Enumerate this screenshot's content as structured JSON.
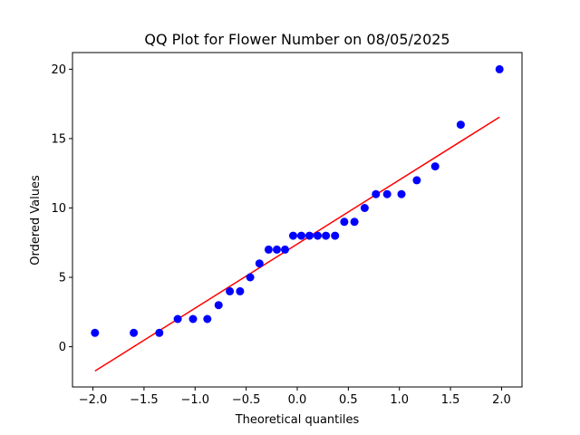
{
  "chart_data": {
    "type": "scatter",
    "title": "QQ Plot for Flower Number on 08/05/2025",
    "xlabel": "Theoretical quantiles",
    "ylabel": "Ordered Values",
    "xlim": [
      -2.2,
      2.2
    ],
    "ylim": [
      -2.9,
      21.2
    ],
    "xticks": [
      -2.0,
      -1.5,
      -1.0,
      -0.5,
      0.0,
      0.5,
      1.0,
      1.5,
      2.0
    ],
    "xtick_labels": [
      "−2.0",
      "−1.5",
      "−1.0",
      "−0.5",
      "0.0",
      "0.5",
      "1.0",
      "1.5",
      "2.0"
    ],
    "yticks": [
      0,
      5,
      10,
      15,
      20
    ],
    "ytick_labels": [
      "0",
      "5",
      "10",
      "15",
      "20"
    ],
    "grid": false,
    "series": [
      {
        "kind": "points",
        "color": "#0000ff",
        "x": [
          -1.98,
          -1.6,
          -1.35,
          -1.17,
          -1.02,
          -0.88,
          -0.77,
          -0.66,
          -0.56,
          -0.46,
          -0.37,
          -0.28,
          -0.2,
          -0.12,
          -0.04,
          0.04,
          0.12,
          0.2,
          0.28,
          0.37,
          0.46,
          0.56,
          0.66,
          0.77,
          0.88,
          1.02,
          1.17,
          1.35,
          1.6,
          1.98
        ],
        "y": [
          1,
          1,
          1,
          2,
          2,
          2,
          3,
          4,
          4,
          5,
          6,
          7,
          7,
          7,
          8,
          8,
          8,
          8,
          8,
          8,
          9,
          9,
          10,
          11,
          11,
          11,
          12,
          13,
          16,
          20
        ]
      },
      {
        "kind": "line",
        "color": "#ff0000",
        "x": [
          -1.98,
          1.98
        ],
        "y": [
          -1.75,
          16.55
        ]
      }
    ]
  }
}
